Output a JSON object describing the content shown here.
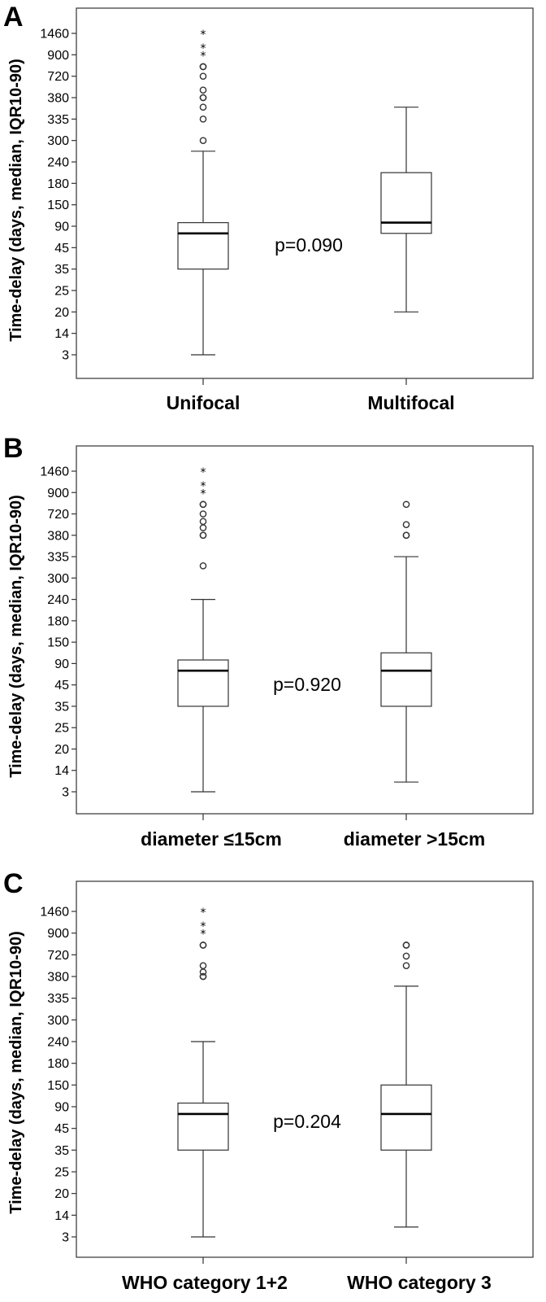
{
  "y_axis_label": "Time-delay (days, median, IQR10-90)",
  "chart_data": [
    {
      "type": "boxplot",
      "panel": "A",
      "ylabel": "Time-delay (days, median, IQR10-90)",
      "y_ticks": [
        "1460",
        "900",
        "720",
        "380",
        "335",
        "300",
        "240",
        "180",
        "150",
        "90",
        "45",
        "35",
        "25",
        "20",
        "14",
        "3"
      ],
      "y_scale": "ordinal (tick labels evenly spaced)",
      "p_value": "p=0.090",
      "categories": [
        "Unifocal",
        "Multifocal"
      ],
      "boxes": [
        {
          "category": "Unifocal",
          "whisker_low": 3,
          "q1": 35,
          "median": 75,
          "q3": 100,
          "whisker_high": 270,
          "outliers": [
            300,
            335,
            360,
            380,
            380,
            500,
            720,
            800,
            800
          ],
          "extremes": [
            900,
            1100,
            1460
          ]
        },
        {
          "category": "Multifocal",
          "whisker_low": 20,
          "q1": 75,
          "median": 100,
          "q3": 210,
          "whisker_high": 360,
          "outliers": [],
          "extremes": []
        }
      ]
    },
    {
      "type": "boxplot",
      "panel": "B",
      "ylabel": "Time-delay (days, median, IQR10-90)",
      "y_ticks": [
        "1460",
        "900",
        "720",
        "380",
        "335",
        "300",
        "240",
        "180",
        "150",
        "90",
        "45",
        "35",
        "25",
        "20",
        "14",
        "3"
      ],
      "y_scale": "ordinal (tick labels evenly spaced)",
      "p_value": "p=0.920",
      "categories": [
        "diameter ≤15cm",
        "diameter >15cm"
      ],
      "boxes": [
        {
          "category": "diameter ≤15cm",
          "whisker_low": 3,
          "q1": 35,
          "median": 75,
          "q3": 100,
          "whisker_high": 240,
          "outliers": [
            320,
            380,
            380,
            500,
            600,
            720,
            800,
            800
          ],
          "extremes": [
            900,
            1100,
            1460
          ]
        },
        {
          "category": "diameter >15cm",
          "whisker_low": 8,
          "q1": 35,
          "median": 75,
          "q3": 120,
          "whisker_high": 335,
          "outliers": [
            380,
            380,
            550,
            800
          ],
          "extremes": []
        }
      ]
    },
    {
      "type": "boxplot",
      "panel": "C",
      "ylabel": "Time-delay (days, median, IQR10-90)",
      "y_ticks": [
        "1460",
        "900",
        "720",
        "380",
        "335",
        "300",
        "240",
        "180",
        "150",
        "90",
        "45",
        "35",
        "25",
        "20",
        "14",
        "3"
      ],
      "y_scale": "ordinal (tick labels evenly spaced)",
      "p_value": "p=0.204",
      "categories": [
        "WHO category 1+2",
        "WHO category 3"
      ],
      "boxes": [
        {
          "category": "WHO category 1+2",
          "whisker_low": 3,
          "q1": 35,
          "median": 75,
          "q3": 100,
          "whisker_high": 240,
          "outliers": [
            380,
            380,
            450,
            550,
            800,
            800
          ],
          "extremes": [
            900,
            1100,
            1460
          ]
        },
        {
          "category": "WHO category 3",
          "whisker_low": 8,
          "q1": 35,
          "median": 75,
          "q3": 150,
          "whisker_high": 360,
          "outliers": [
            550,
            700,
            800,
            800
          ],
          "extremes": []
        }
      ]
    }
  ]
}
